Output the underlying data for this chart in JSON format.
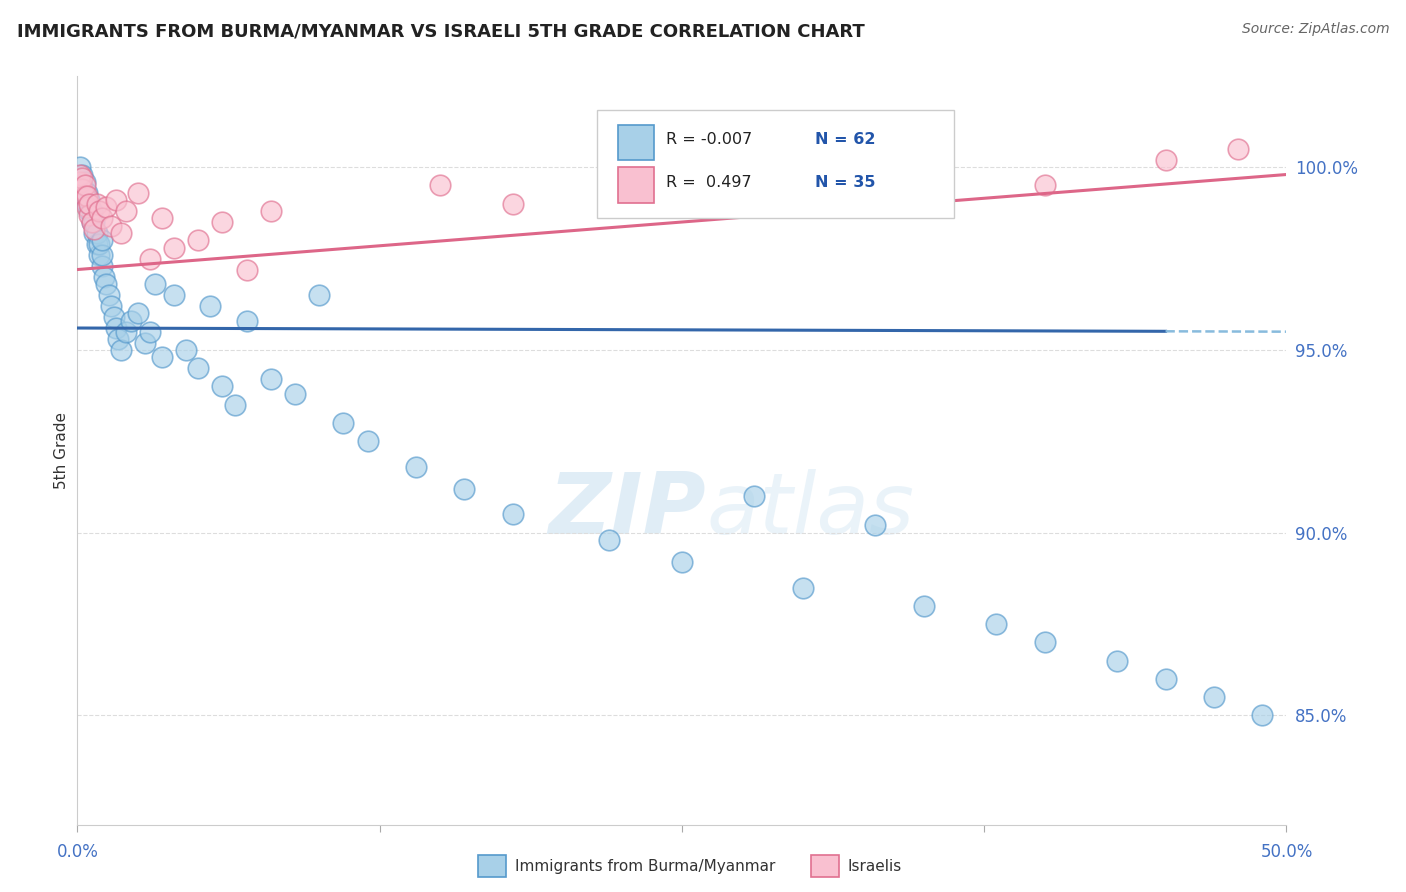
{
  "title": "IMMIGRANTS FROM BURMA/MYANMAR VS ISRAELI 5TH GRADE CORRELATION CHART",
  "source": "Source: ZipAtlas.com",
  "ylabel": "5th Grade",
  "xlim": [
    0.0,
    50.0
  ],
  "ylim": [
    82.0,
    102.5
  ],
  "yticks": [
    85.0,
    90.0,
    95.0,
    100.0
  ],
  "ytick_labels": [
    "85.0%",
    "90.0%",
    "95.0%",
    "100.0%"
  ],
  "legend_blue_r": "-0.007",
  "legend_blue_n": "62",
  "legend_pink_r": "0.497",
  "legend_pink_n": "35",
  "legend_label_blue": "Immigrants from Burma/Myanmar",
  "legend_label_pink": "Israelis",
  "blue_color": "#a8d0e8",
  "pink_color": "#f9c0d0",
  "blue_edge_color": "#5599cc",
  "pink_edge_color": "#e07090",
  "blue_trend_color": "#3366aa",
  "pink_trend_color": "#dd6688",
  "dashed_line_color": "#88bbdd",
  "grid_color": "#dddddd",
  "watermark_color": "#daeaf5",
  "blue_x": [
    0.1,
    0.2,
    0.2,
    0.3,
    0.3,
    0.4,
    0.4,
    0.5,
    0.5,
    0.6,
    0.6,
    0.7,
    0.7,
    0.8,
    0.8,
    0.9,
    0.9,
    1.0,
    1.0,
    1.0,
    1.1,
    1.2,
    1.3,
    1.4,
    1.5,
    1.6,
    1.7,
    1.8,
    2.0,
    2.2,
    2.5,
    2.8,
    3.0,
    3.2,
    3.5,
    4.0,
    4.5,
    5.0,
    5.5,
    6.0,
    6.5,
    7.0,
    8.0,
    9.0,
    10.0,
    11.0,
    12.0,
    14.0,
    16.0,
    18.0,
    22.0,
    25.0,
    28.0,
    30.0,
    33.0,
    35.0,
    38.0,
    40.0,
    43.0,
    45.0,
    47.0,
    49.0
  ],
  "blue_y": [
    100.0,
    99.5,
    99.8,
    99.2,
    99.6,
    99.0,
    99.3,
    98.8,
    99.1,
    98.5,
    98.8,
    98.2,
    98.5,
    97.9,
    98.2,
    97.6,
    97.9,
    97.3,
    97.6,
    98.0,
    97.0,
    96.8,
    96.5,
    96.2,
    95.9,
    95.6,
    95.3,
    95.0,
    95.5,
    95.8,
    96.0,
    95.2,
    95.5,
    96.8,
    94.8,
    96.5,
    95.0,
    94.5,
    96.2,
    94.0,
    93.5,
    95.8,
    94.2,
    93.8,
    96.5,
    93.0,
    92.5,
    91.8,
    91.2,
    90.5,
    89.8,
    89.2,
    91.0,
    88.5,
    90.2,
    88.0,
    87.5,
    87.0,
    86.5,
    86.0,
    85.5,
    85.0
  ],
  "pink_x": [
    0.1,
    0.1,
    0.2,
    0.2,
    0.3,
    0.3,
    0.4,
    0.4,
    0.5,
    0.5,
    0.6,
    0.7,
    0.8,
    0.9,
    1.0,
    1.2,
    1.4,
    1.6,
    1.8,
    2.0,
    2.5,
    3.0,
    3.5,
    4.0,
    5.0,
    6.0,
    7.0,
    8.0,
    15.0,
    18.0,
    25.0,
    35.0,
    40.0,
    45.0,
    48.0
  ],
  "pink_y": [
    99.6,
    99.8,
    99.4,
    99.7,
    99.2,
    99.5,
    98.9,
    99.2,
    98.7,
    99.0,
    98.5,
    98.3,
    99.0,
    98.8,
    98.6,
    98.9,
    98.4,
    99.1,
    98.2,
    98.8,
    99.3,
    97.5,
    98.6,
    97.8,
    98.0,
    98.5,
    97.2,
    98.8,
    99.5,
    99.0,
    99.8,
    100.0,
    99.5,
    100.2,
    100.5
  ],
  "blue_trend_start_x": 0.0,
  "blue_trend_end_solid_x": 45.0,
  "blue_trend_end_x": 50.0,
  "blue_trend_y_at0": 95.6,
  "blue_trend_y_at50": 95.5,
  "pink_trend_y_at0": 97.2,
  "pink_trend_y_at50": 99.8
}
